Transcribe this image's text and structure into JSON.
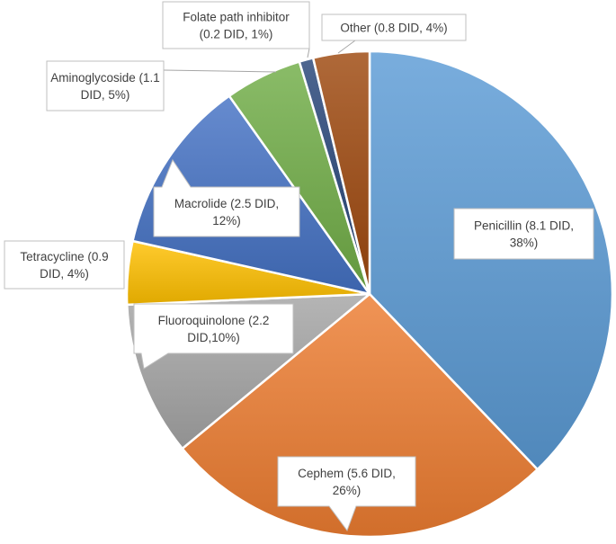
{
  "chart_data": {
    "type": "pie",
    "title": "",
    "slices": [
      {
        "category": "Penicillin",
        "value": 8.1,
        "label": [
          "Penicillin (8.1 DID,",
          "38%)"
        ],
        "color": "#5b9bd5"
      },
      {
        "category": "Cephem",
        "value": 5.6,
        "label": [
          "Cephem (5.6 DID,",
          "26%)"
        ],
        "color": "#ed7d31"
      },
      {
        "category": "Fluoroquinolone",
        "value": 2.2,
        "label": [
          "Fluoroquinolone (2.2",
          "DID,10%)"
        ],
        "color": "#a5a5a5"
      },
      {
        "category": "Tetracycline",
        "value": 0.9,
        "label": [
          "Tetracycline (0.9",
          "DID, 4%)"
        ],
        "color": "#ffc000"
      },
      {
        "category": "Macrolide",
        "value": 2.5,
        "label": [
          "Macrolide (2.5 DID,",
          "12%)"
        ],
        "color": "#4472c4"
      },
      {
        "category": "Aminoglycoside",
        "value": 1.1,
        "label": [
          "Aminoglycoside (1.1",
          "DID, 5%)"
        ],
        "color": "#70ad47"
      },
      {
        "category": "Folate path inhibitor",
        "value": 0.2,
        "label": [
          "Folate path inhibitor",
          "(0.2 DID, 1%)"
        ],
        "color": "#264478"
      },
      {
        "category": "Other",
        "value": 0.8,
        "label": [
          "Other (0.8 DID, 4%)"
        ],
        "color": "#9e480e"
      }
    ],
    "legend": "none",
    "data_labels": "callouts"
  }
}
